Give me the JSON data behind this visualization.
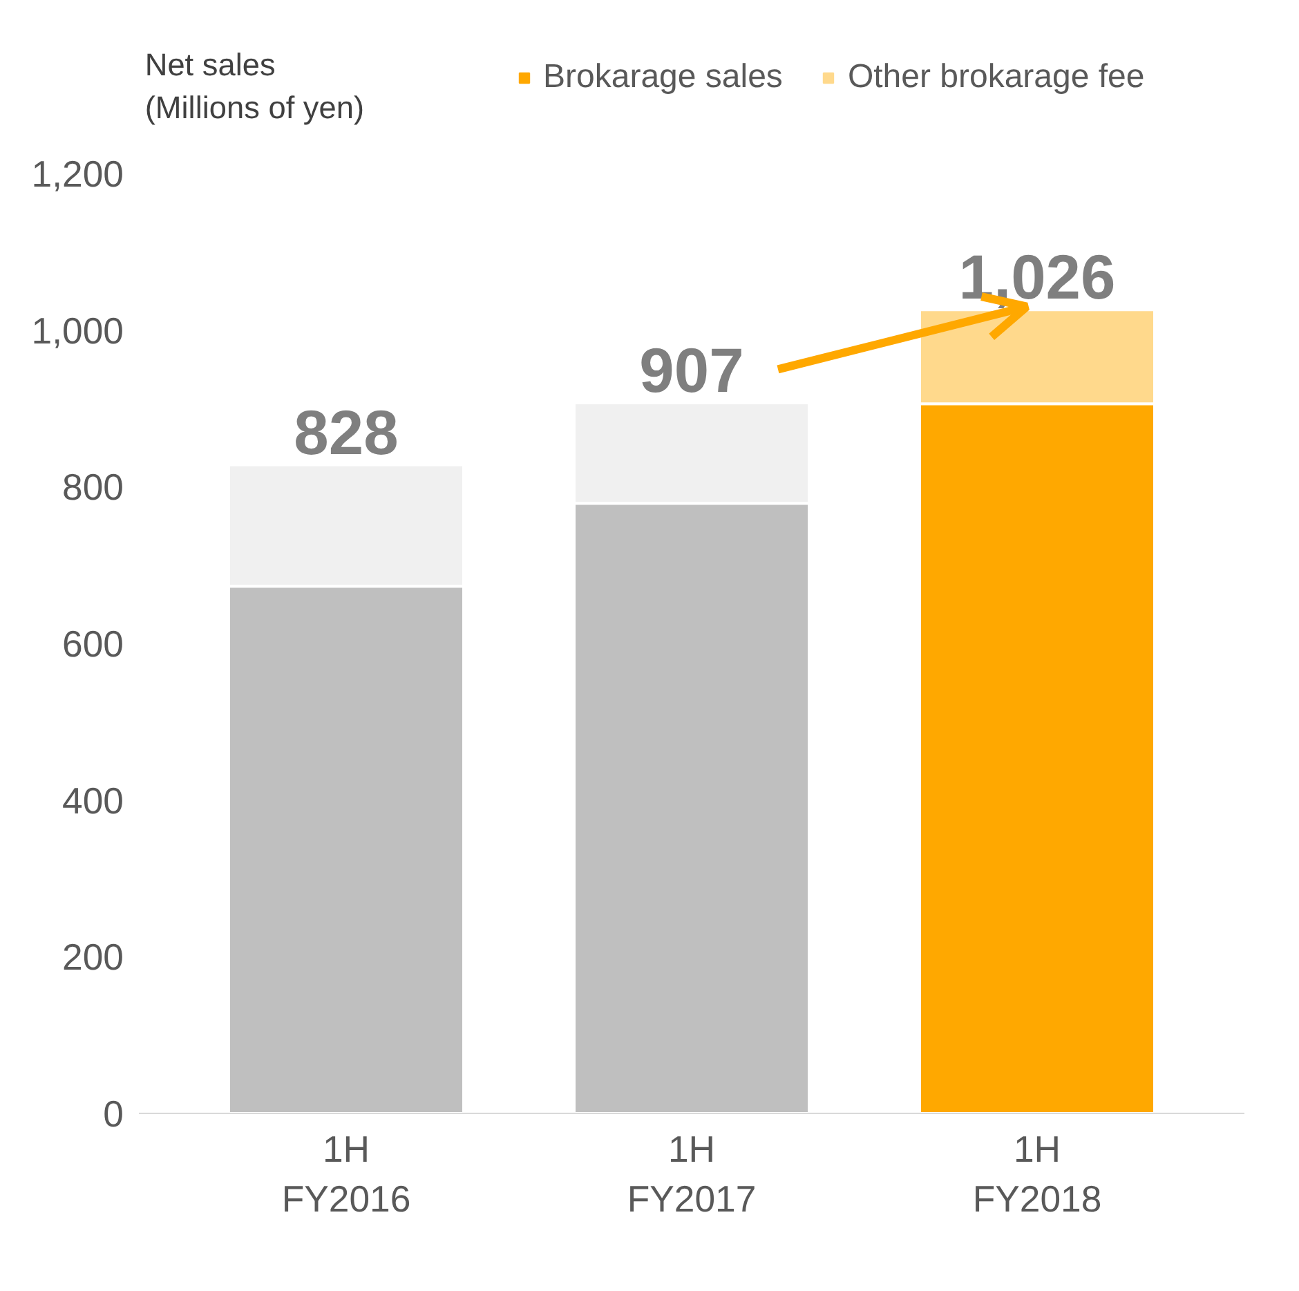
{
  "chart_data": {
    "type": "bar",
    "stacked": true,
    "ylabel": "Net sales\n(Millions of yen)",
    "categories": [
      "1H\nFY2016",
      "1H\nFY2017",
      "1H\nFY2018"
    ],
    "series": [
      {
        "name": "Brokarage sales",
        "color": "#ffa800",
        "colors": [
          "#bfbfbf",
          "#bfbfbf",
          "#ffa800"
        ],
        "values": [
          673,
          779,
          906
        ]
      },
      {
        "name": "Other brokarage fee",
        "color": "#ffd98c",
        "colors": [
          "#f0f0f0",
          "#f0f0f0",
          "#ffd98c"
        ],
        "values": [
          155,
          128,
          120
        ]
      }
    ],
    "totals": [
      "828",
      "907",
      "1,026"
    ],
    "ylim": [
      0,
      1200
    ],
    "yticks": [
      0,
      200,
      400,
      600,
      800,
      {
        "value": 1000,
        "label": "1,000"
      },
      {
        "value": 1200,
        "label": "1,200"
      }
    ],
    "grid": false,
    "legend": "top"
  }
}
